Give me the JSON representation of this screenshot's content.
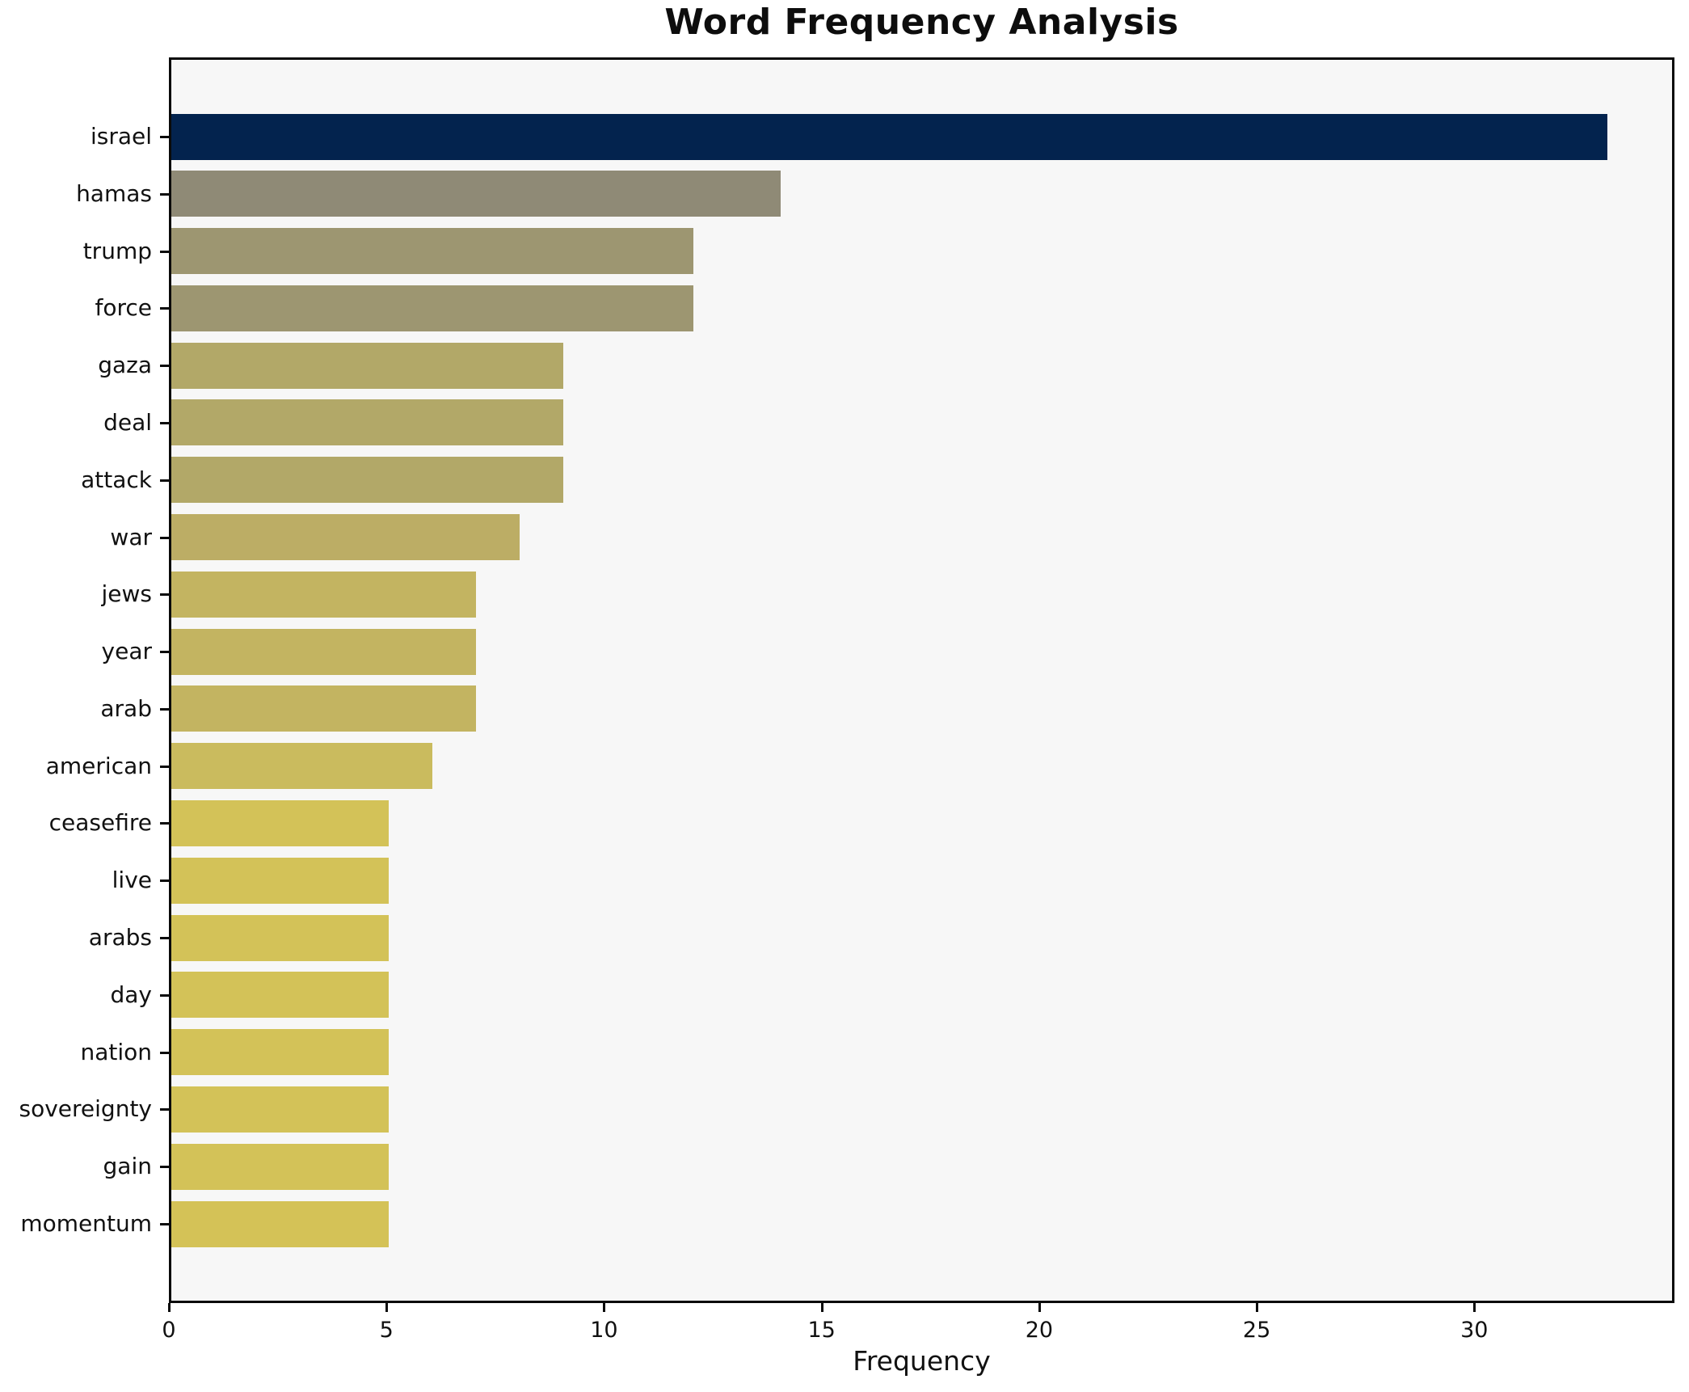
{
  "title": "Word Frequency Analysis",
  "chart_data": {
    "type": "bar",
    "orientation": "horizontal",
    "title": "Word Frequency Analysis",
    "xlabel": "Frequency",
    "ylabel": "",
    "xlim": [
      0,
      34.6
    ],
    "x_ticks": [
      0,
      5,
      10,
      15,
      20,
      25,
      30
    ],
    "grid": false,
    "legend": false,
    "categories": [
      "israel",
      "hamas",
      "trump",
      "force",
      "gaza",
      "deal",
      "attack",
      "war",
      "jews",
      "year",
      "arab",
      "american",
      "ceasefire",
      "live",
      "arabs",
      "day",
      "nation",
      "sovereignty",
      "gain",
      "momentum"
    ],
    "values": [
      33,
      14,
      12,
      12,
      9,
      9,
      9,
      8,
      7,
      7,
      7,
      6,
      5,
      5,
      5,
      5,
      5,
      5,
      5,
      5
    ],
    "bar_colors": [
      "#03234e",
      "#8f8a76",
      "#9d9671",
      "#9d9671",
      "#b2a868",
      "#b2a868",
      "#b2a868",
      "#bcad65",
      "#c3b461",
      "#c3b461",
      "#c3b461",
      "#cabb5e",
      "#d3c258",
      "#d3c258",
      "#d3c258",
      "#d3c258",
      "#d3c258",
      "#d3c258",
      "#d3c258",
      "#d4c257"
    ],
    "plot_background": "#f7f7f7",
    "figure_background": "#ffffff",
    "spine_color": "#0a0a0a",
    "text_color": "#111111"
  }
}
